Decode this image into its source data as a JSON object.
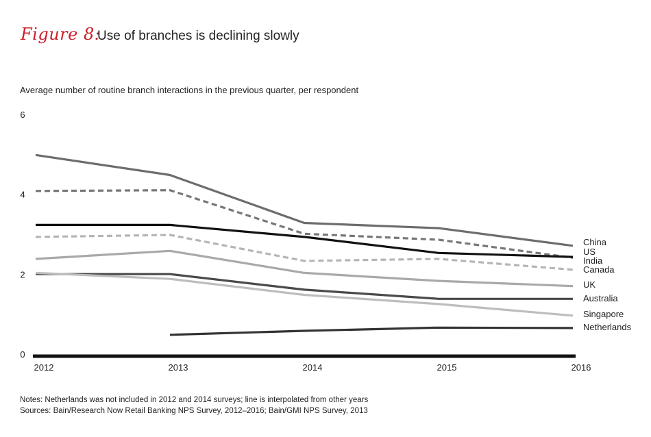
{
  "header": {
    "figure_label": "Figure 8:",
    "title": "Use of branches is declining slowly"
  },
  "chart_data": {
    "type": "line",
    "title": "Use of branches is declining slowly",
    "ylabel": "Average number of routine branch interactions in the previous quarter, per respondent",
    "xlabel": "",
    "x": [
      "2012",
      "2013",
      "2014",
      "2015",
      "2016"
    ],
    "yticks": [
      "0",
      "2",
      "4",
      "6"
    ],
    "ylim": [
      0,
      6
    ],
    "grid": false,
    "legend": "labels at right end of lines",
    "series": [
      {
        "name": "China",
        "values": [
          5.0,
          4.5,
          3.3,
          3.17,
          2.73
        ],
        "color": "#6d6d6d",
        "dash": false
      },
      {
        "name": "US",
        "values": [
          4.1,
          4.12,
          3.03,
          2.88,
          2.43
        ],
        "color": "#777777",
        "dash": true
      },
      {
        "name": "India",
        "values": [
          3.25,
          3.25,
          2.95,
          2.55,
          2.45
        ],
        "color": "#111111",
        "dash": false
      },
      {
        "name": "Canada",
        "values": [
          2.95,
          3.0,
          2.35,
          2.4,
          2.13
        ],
        "color": "#b5b5b5",
        "dash": true
      },
      {
        "name": "UK",
        "values": [
          2.4,
          2.6,
          2.05,
          1.85,
          1.72
        ],
        "color": "#a9a9a9",
        "dash": false
      },
      {
        "name": "Australia",
        "values": [
          2.02,
          2.02,
          1.63,
          1.4,
          1.4
        ],
        "color": "#4a4a4a",
        "dash": false
      },
      {
        "name": "Singapore",
        "values": [
          2.05,
          1.9,
          1.5,
          1.27,
          0.98
        ],
        "color": "#bdbdbd",
        "dash": false
      },
      {
        "name": "Netherlands",
        "values": [
          null,
          0.5,
          0.6,
          0.68,
          0.67
        ],
        "color": "#333333",
        "dash": false
      }
    ]
  },
  "notes": {
    "line1": "Notes: Netherlands was not included in 2012 and 2014 surveys; line is interpolated from other years",
    "line2": "Sources: Bain/Research Now Retail Banking NPS Survey, 2012–2016; Bain/GMI NPS Survey, 2013"
  }
}
